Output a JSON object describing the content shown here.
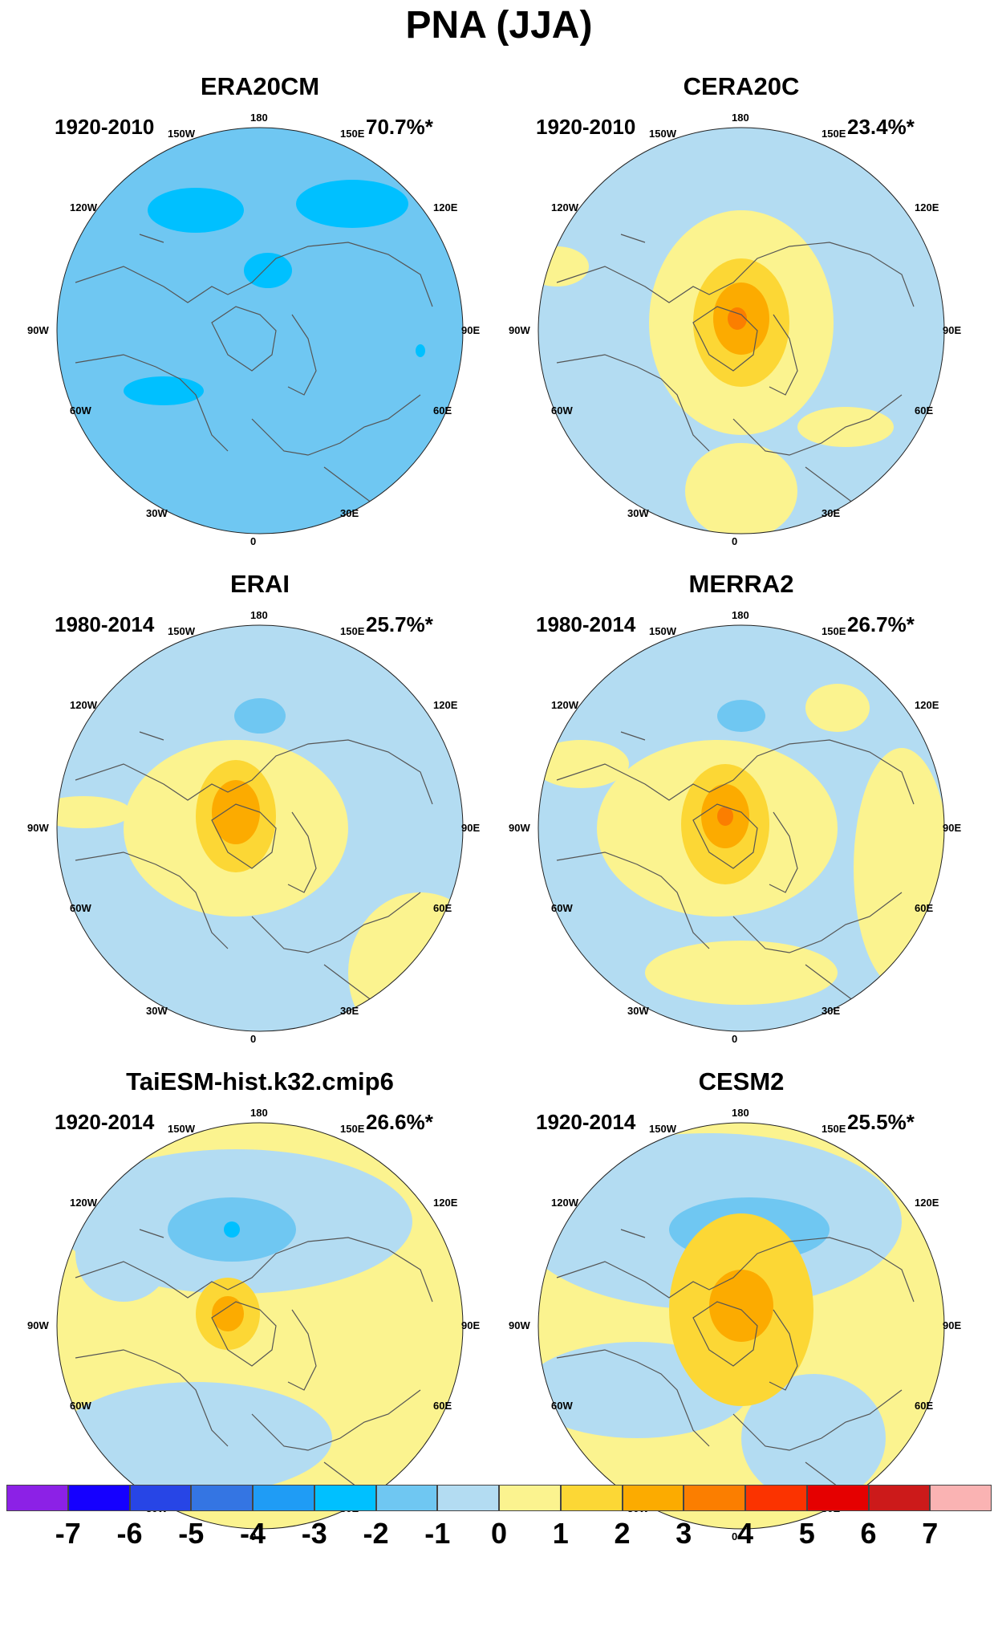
{
  "title": "PNA (JJA)",
  "panels": [
    {
      "name": "ERA20CM",
      "period": "1920-2010",
      "pct": "70.7%*"
    },
    {
      "name": "CERA20C",
      "period": "1920-2010",
      "pct": "23.4%*"
    },
    {
      "name": "ERAI",
      "period": "1980-2014",
      "pct": "25.7%*"
    },
    {
      "name": "MERRA2",
      "period": "1980-2014",
      "pct": "26.7%*"
    },
    {
      "name": "TaiESM-hist.k32.cmip6",
      "period": "1920-2014",
      "pct": "26.6%*"
    },
    {
      "name": "CESM2",
      "period": "1920-2014",
      "pct": "25.5%*"
    }
  ],
  "longitude_labels": [
    "180",
    "150W",
    "150E",
    "120W",
    "120E",
    "90W",
    "90E",
    "60W",
    "60E",
    "30W",
    "30E",
    "0"
  ],
  "colorbar": {
    "labels": [
      "-7",
      "-6",
      "-5",
      "-4",
      "-3",
      "-2",
      "-1",
      "0",
      "1",
      "2",
      "3",
      "4",
      "5",
      "6",
      "7"
    ],
    "colors": [
      "#8c21e6",
      "#1500ff",
      "#2745e6",
      "#3475e3",
      "#1f9cf5",
      "#00c0ff",
      "#6fc7f2",
      "#b3dcf2",
      "#fbf38f",
      "#fcd735",
      "#fcab00",
      "#fb7e00",
      "#fb3300",
      "#e50000",
      "#cc1a1a",
      "#fab3b3"
    ]
  },
  "palette": {
    "ocean_bg": "#b3dcf2",
    "coast": "#555555"
  }
}
